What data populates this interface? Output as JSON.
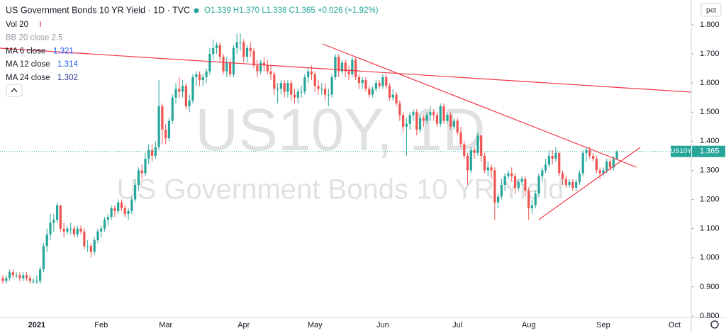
{
  "header": {
    "title": "US Government Bonds 10 YR Yield · 1D · TVC",
    "ohlc": "O1.339 H1.370 L1.338 C1.365 +0.026 (+1.92%)",
    "indicators": [
      {
        "name": "Vol 20"
      },
      {
        "name": "BB 20 close 2.5"
      },
      {
        "name": "MA 6 close",
        "value": 1.321,
        "color": "#2962ff"
      },
      {
        "name": "MA 12 close",
        "value": 1.314,
        "color": "#1e53e5"
      },
      {
        "name": "MA 24 close",
        "value": 1.302,
        "color": "#283593"
      }
    ],
    "unit_button": "pct"
  },
  "chart_data": {
    "type": "candlestick",
    "watermark": "US10Y, 1D",
    "watermark_subtitle": "US Government Bonds 10 YR Yield",
    "symbol_label": "US10Y",
    "last_price": 1.365,
    "up_color": "#26a69a",
    "down_color": "#ef5350",
    "ylim": [
      0.795,
      1.885
    ],
    "yticks": [
      {
        "value": 0.8,
        "label": "0.800"
      },
      {
        "value": 0.9,
        "label": "0.900"
      },
      {
        "value": 1.0,
        "label": "1.000"
      },
      {
        "value": 1.1,
        "label": "1.100"
      },
      {
        "value": 1.2,
        "label": "1.200"
      },
      {
        "value": 1.3,
        "label": "1.300"
      },
      {
        "value": 1.4,
        "label": "1.400"
      },
      {
        "value": 1.5,
        "label": "1.500"
      },
      {
        "value": 1.6,
        "label": "1.600"
      },
      {
        "value": 1.7,
        "label": "1.700"
      },
      {
        "value": 1.8,
        "label": "1.800"
      }
    ],
    "categories": [
      null,
      null,
      null,
      null,
      null,
      null,
      null,
      null,
      null,
      null,
      "2021",
      null,
      null,
      null,
      null,
      null,
      null,
      null,
      null,
      null,
      null,
      null,
      null,
      null,
      null,
      null,
      null,
      null,
      null,
      "Feb",
      null,
      null,
      null,
      null,
      null,
      null,
      null,
      null,
      null,
      null,
      null,
      null,
      null,
      null,
      null,
      null,
      null,
      null,
      "Mar",
      null,
      null,
      null,
      null,
      null,
      null,
      null,
      null,
      null,
      null,
      null,
      null,
      null,
      null,
      null,
      null,
      null,
      null,
      null,
      null,
      null,
      null,
      "Apr",
      null,
      null,
      null,
      null,
      null,
      null,
      null,
      null,
      null,
      null,
      null,
      null,
      null,
      null,
      null,
      null,
      null,
      null,
      null,
      null,
      "May",
      null,
      null,
      null,
      null,
      null,
      null,
      null,
      null,
      null,
      null,
      null,
      null,
      null,
      null,
      null,
      null,
      null,
      null,
      null,
      "Jun",
      null,
      null,
      null,
      null,
      null,
      null,
      null,
      null,
      null,
      null,
      null,
      null,
      null,
      null,
      null,
      null,
      null,
      null,
      null,
      null,
      null,
      "Jul",
      null,
      null,
      null,
      null,
      null,
      null,
      null,
      null,
      null,
      null,
      null,
      null,
      null,
      null,
      null,
      null,
      null,
      null,
      null,
      null,
      "Aug",
      null,
      null,
      null,
      null,
      null,
      null,
      null,
      null,
      null,
      null,
      null,
      null,
      null,
      null,
      null,
      null,
      null,
      null,
      null,
      null,
      null,
      "Sep",
      null,
      null,
      null,
      null,
      null,
      null,
      null,
      null,
      null,
      null,
      null,
      null,
      null,
      null,
      null,
      null,
      null,
      null,
      null,
      null,
      "Oct"
    ],
    "open": [
      0.93,
      0.92,
      0.93,
      0.95,
      0.94,
      0.94,
      0.93,
      0.94,
      0.93,
      0.92,
      0.92,
      0.92,
      0.96,
      1.04,
      1.08,
      1.12,
      1.13,
      1.18,
      1.1,
      1.09,
      1.1,
      1.1,
      1.08,
      1.1,
      1.09,
      1.04,
      1.04,
      1.02,
      1.06,
      1.09,
      1.1,
      1.13,
      1.14,
      1.17,
      1.16,
      1.19,
      1.17,
      1.15,
      1.16,
      1.2,
      1.25,
      1.3,
      1.29,
      1.34,
      1.37,
      1.35,
      1.38,
      1.52,
      1.44,
      1.41,
      1.47,
      1.55,
      1.58,
      1.57,
      1.59,
      1.52,
      1.54,
      1.62,
      1.63,
      1.61,
      1.62,
      1.64,
      1.7,
      1.72,
      1.73,
      1.69,
      1.64,
      1.67,
      1.63,
      1.72,
      1.74,
      1.74,
      1.69,
      1.72,
      1.71,
      1.66,
      1.64,
      1.67,
      1.66,
      1.64,
      1.63,
      1.58,
      1.58,
      1.6,
      1.57,
      1.6,
      1.56,
      1.55,
      1.57,
      1.57,
      1.62,
      1.64,
      1.63,
      1.59,
      1.58,
      1.58,
      1.56,
      1.56,
      1.62,
      1.69,
      1.64,
      1.67,
      1.64,
      1.63,
      1.68,
      1.62,
      1.6,
      1.61,
      1.58,
      1.56,
      1.58,
      1.6,
      1.59,
      1.62,
      1.59,
      1.55,
      1.56,
      1.53,
      1.49,
      1.45,
      1.46,
      1.49,
      1.5,
      1.44,
      1.48,
      1.47,
      1.49,
      1.5,
      1.49,
      1.46,
      1.52,
      1.47,
      1.49,
      1.45,
      1.47,
      1.43,
      1.39,
      1.35,
      1.3,
      1.37,
      1.36,
      1.42,
      1.35,
      1.3,
      1.31,
      1.3,
      1.19,
      1.21,
      1.25,
      1.28,
      1.29,
      1.28,
      1.24,
      1.26,
      1.27,
      1.23,
      1.17,
      1.18,
      1.22,
      1.28,
      1.3,
      1.32,
      1.35,
      1.34,
      1.36,
      1.29,
      1.27,
      1.25,
      1.26,
      1.24,
      1.26,
      1.29,
      1.36,
      1.37,
      1.35,
      1.34,
      1.3,
      1.29,
      1.3,
      1.33,
      1.31,
      1.339,
      null,
      null,
      null,
      null,
      null,
      null,
      null,
      null,
      null,
      null,
      null,
      null,
      null,
      null,
      null,
      null,
      null
    ],
    "high": [
      0.94,
      0.94,
      0.96,
      0.96,
      0.95,
      0.95,
      0.95,
      0.95,
      0.94,
      0.93,
      0.94,
      0.97,
      1.05,
      1.1,
      1.15,
      1.15,
      1.19,
      1.18,
      1.12,
      1.11,
      1.12,
      1.11,
      1.11,
      1.11,
      1.1,
      1.06,
      1.05,
      1.07,
      1.1,
      1.11,
      1.14,
      1.15,
      1.18,
      1.18,
      1.2,
      1.2,
      1.18,
      1.17,
      1.21,
      1.27,
      1.31,
      1.32,
      1.36,
      1.39,
      1.39,
      1.4,
      1.61,
      1.53,
      1.46,
      1.48,
      1.56,
      1.6,
      1.62,
      1.61,
      1.6,
      1.56,
      1.63,
      1.64,
      1.64,
      1.63,
      1.65,
      1.72,
      1.75,
      1.74,
      1.74,
      1.7,
      1.69,
      1.68,
      1.73,
      1.77,
      1.77,
      1.75,
      1.73,
      1.74,
      1.72,
      1.68,
      1.68,
      1.69,
      1.68,
      1.66,
      1.64,
      1.6,
      1.61,
      1.61,
      1.61,
      1.61,
      1.58,
      1.58,
      1.59,
      1.63,
      1.65,
      1.66,
      1.64,
      1.61,
      1.6,
      1.6,
      1.58,
      1.63,
      1.7,
      1.7,
      1.68,
      1.68,
      1.66,
      1.69,
      1.69,
      1.63,
      1.62,
      1.62,
      1.59,
      1.59,
      1.61,
      1.61,
      1.63,
      1.63,
      1.6,
      1.58,
      1.57,
      1.54,
      1.5,
      1.48,
      1.5,
      1.51,
      1.51,
      1.49,
      1.49,
      1.5,
      1.52,
      1.51,
      1.5,
      1.53,
      1.53,
      1.5,
      1.5,
      1.48,
      1.48,
      1.45,
      1.4,
      1.36,
      1.38,
      1.38,
      1.43,
      1.42,
      1.36,
      1.33,
      1.32,
      1.31,
      1.22,
      1.27,
      1.29,
      1.3,
      1.31,
      1.29,
      1.27,
      1.28,
      1.28,
      1.24,
      1.2,
      1.23,
      1.29,
      1.31,
      1.34,
      1.37,
      1.37,
      1.38,
      1.36,
      1.3,
      1.28,
      1.27,
      1.27,
      1.27,
      1.3,
      1.37,
      1.38,
      1.38,
      1.36,
      1.35,
      1.31,
      1.31,
      1.34,
      1.34,
      1.35,
      1.37,
      null,
      null,
      null,
      null,
      null,
      null,
      null,
      null,
      null,
      null,
      null,
      null,
      null,
      null,
      null,
      null,
      null
    ],
    "low": [
      0.91,
      0.91,
      0.92,
      0.93,
      0.93,
      0.92,
      0.92,
      0.92,
      0.91,
      0.91,
      0.91,
      0.91,
      0.95,
      1.02,
      1.06,
      1.09,
      1.12,
      1.09,
      1.07,
      1.08,
      1.08,
      1.07,
      1.07,
      1.08,
      1.03,
      1.02,
      1.0,
      1.01,
      1.05,
      1.07,
      1.09,
      1.11,
      1.13,
      1.14,
      1.15,
      1.16,
      1.14,
      1.13,
      1.15,
      1.19,
      1.23,
      1.27,
      1.28,
      1.32,
      1.33,
      1.34,
      1.37,
      1.39,
      1.39,
      1.4,
      1.46,
      1.53,
      1.55,
      1.55,
      1.51,
      1.5,
      1.53,
      1.59,
      1.59,
      1.59,
      1.6,
      1.63,
      1.68,
      1.7,
      1.67,
      1.63,
      1.62,
      1.62,
      1.62,
      1.7,
      1.71,
      1.67,
      1.67,
      1.69,
      1.65,
      1.62,
      1.63,
      1.64,
      1.63,
      1.61,
      1.56,
      1.53,
      1.56,
      1.55,
      1.55,
      1.54,
      1.53,
      1.53,
      1.55,
      1.56,
      1.6,
      1.61,
      1.57,
      1.56,
      1.56,
      1.54,
      1.52,
      1.55,
      1.61,
      1.62,
      1.63,
      1.62,
      1.61,
      1.62,
      1.61,
      1.58,
      1.58,
      1.57,
      1.55,
      1.55,
      1.57,
      1.58,
      1.58,
      1.58,
      1.54,
      1.54,
      1.52,
      1.47,
      1.43,
      1.35,
      1.44,
      1.47,
      1.42,
      1.43,
      1.45,
      1.46,
      1.47,
      1.47,
      1.45,
      1.45,
      1.46,
      1.46,
      1.44,
      1.44,
      1.42,
      1.38,
      1.34,
      1.25,
      1.29,
      1.34,
      1.35,
      1.33,
      1.29,
      1.28,
      1.27,
      1.13,
      1.17,
      1.2,
      1.23,
      1.27,
      1.26,
      1.22,
      1.23,
      1.25,
      1.21,
      1.13,
      1.15,
      1.17,
      1.21,
      1.26,
      1.29,
      1.31,
      1.32,
      1.33,
      1.28,
      1.25,
      1.24,
      1.24,
      1.23,
      1.23,
      1.25,
      1.28,
      1.33,
      1.34,
      1.33,
      1.29,
      1.27,
      1.28,
      1.29,
      1.3,
      1.3,
      1.338,
      null,
      null,
      null,
      null,
      null,
      null,
      null,
      null,
      null,
      null,
      null,
      null,
      null,
      null,
      null,
      null,
      null
    ],
    "close": [
      0.92,
      0.93,
      0.95,
      0.94,
      0.94,
      0.93,
      0.94,
      0.93,
      0.92,
      0.92,
      0.92,
      0.96,
      1.04,
      1.08,
      1.12,
      1.13,
      1.18,
      1.1,
      1.09,
      1.1,
      1.1,
      1.08,
      1.1,
      1.09,
      1.04,
      1.04,
      1.02,
      1.06,
      1.09,
      1.1,
      1.13,
      1.14,
      1.17,
      1.16,
      1.19,
      1.17,
      1.15,
      1.16,
      1.2,
      1.25,
      1.3,
      1.29,
      1.34,
      1.37,
      1.35,
      1.38,
      1.52,
      1.44,
      1.41,
      1.47,
      1.55,
      1.58,
      1.57,
      1.59,
      1.52,
      1.54,
      1.62,
      1.63,
      1.61,
      1.62,
      1.64,
      1.7,
      1.72,
      1.73,
      1.69,
      1.64,
      1.67,
      1.63,
      1.72,
      1.74,
      1.74,
      1.69,
      1.72,
      1.71,
      1.66,
      1.64,
      1.67,
      1.66,
      1.64,
      1.63,
      1.58,
      1.58,
      1.6,
      1.57,
      1.6,
      1.56,
      1.55,
      1.57,
      1.57,
      1.62,
      1.64,
      1.63,
      1.59,
      1.58,
      1.58,
      1.56,
      1.56,
      1.62,
      1.69,
      1.64,
      1.67,
      1.64,
      1.63,
      1.68,
      1.62,
      1.6,
      1.61,
      1.58,
      1.56,
      1.58,
      1.6,
      1.59,
      1.62,
      1.59,
      1.55,
      1.56,
      1.53,
      1.49,
      1.45,
      1.46,
      1.49,
      1.5,
      1.44,
      1.48,
      1.47,
      1.49,
      1.5,
      1.49,
      1.46,
      1.52,
      1.47,
      1.49,
      1.45,
      1.47,
      1.43,
      1.39,
      1.35,
      1.3,
      1.37,
      1.36,
      1.42,
      1.35,
      1.3,
      1.31,
      1.3,
      1.19,
      1.21,
      1.25,
      1.28,
      1.29,
      1.28,
      1.24,
      1.26,
      1.27,
      1.23,
      1.17,
      1.18,
      1.22,
      1.28,
      1.3,
      1.32,
      1.35,
      1.34,
      1.36,
      1.29,
      1.27,
      1.25,
      1.26,
      1.24,
      1.26,
      1.29,
      1.36,
      1.37,
      1.35,
      1.34,
      1.3,
      1.29,
      1.3,
      1.33,
      1.31,
      1.339,
      1.365,
      null,
      null,
      null,
      null,
      null,
      null,
      null,
      null,
      null,
      null,
      null,
      null,
      null,
      null,
      null,
      null,
      null
    ]
  }
}
